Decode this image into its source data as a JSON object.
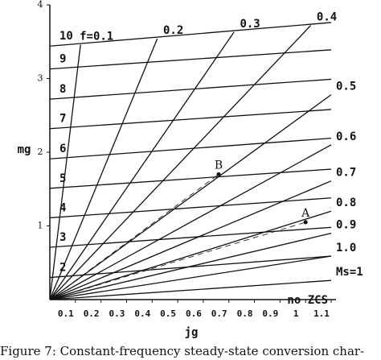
{
  "chart_data": {
    "type": "line",
    "caption": "Figure 7: Constant-frequency steady-state conversion char-",
    "xlabel": "jg",
    "ylabel": "mg",
    "annotation": "no ZCS",
    "xlim": [
      0,
      1.1
    ],
    "ylim": [
      0,
      4
    ],
    "xticks": [
      0.1,
      0.2,
      0.3,
      0.4,
      0.5,
      0.6,
      0.7,
      0.8,
      0.9,
      1,
      1.1
    ],
    "yticks": [
      1,
      2,
      3,
      4
    ],
    "color": "#111111",
    "series": [
      {
        "name": "2",
        "x": [
          0,
          1.1
        ],
        "y": [
          0.3,
          0.59
        ]
      },
      {
        "name": "3",
        "x": [
          0,
          1.1
        ],
        "y": [
          0.71,
          0.98
        ]
      },
      {
        "name": "4",
        "x": [
          0,
          1.1
        ],
        "y": [
          1.11,
          1.38
        ]
      },
      {
        "name": "5",
        "x": [
          0,
          1.1
        ],
        "y": [
          1.51,
          1.77
        ]
      },
      {
        "name": "6",
        "x": [
          0,
          1.1
        ],
        "y": [
          1.91,
          2.19
        ]
      },
      {
        "name": "7",
        "x": [
          0,
          1.1
        ],
        "y": [
          2.32,
          2.58
        ]
      },
      {
        "name": "8",
        "x": [
          0,
          1.1
        ],
        "y": [
          2.72,
          2.99
        ]
      },
      {
        "name": "9",
        "x": [
          0,
          1.1
        ],
        "y": [
          3.13,
          3.39
        ]
      },
      {
        "name": "10",
        "x": [
          0,
          1.1
        ],
        "y": [
          3.44,
          3.76
        ]
      },
      {
        "name": "f=0.1",
        "x": [
          0,
          0.12
        ],
        "y": [
          0,
          3.46
        ]
      },
      {
        "name": "0.2",
        "x": [
          0,
          0.42
        ],
        "y": [
          0,
          3.54
        ]
      },
      {
        "name": "0.3",
        "x": [
          0,
          0.72
        ],
        "y": [
          0,
          3.63
        ]
      },
      {
        "name": "0.4",
        "x": [
          0,
          1.02
        ],
        "y": [
          0,
          3.72
        ]
      },
      {
        "name": "0.5",
        "x": [
          0,
          1.1
        ],
        "y": [
          0,
          2.78
        ]
      },
      {
        "name": "0.6",
        "x": [
          0,
          1.1
        ],
        "y": [
          0,
          2.1
        ]
      },
      {
        "name": "0.7",
        "x": [
          0,
          1.1
        ],
        "y": [
          0,
          1.61
        ]
      },
      {
        "name": "0.8",
        "x": [
          0,
          1.1
        ],
        "y": [
          0,
          1.2
        ]
      },
      {
        "name": "0.9",
        "x": [
          0,
          1.1
        ],
        "y": [
          0,
          0.9
        ]
      },
      {
        "name": "1.0",
        "x": [
          0,
          1.1
        ],
        "y": [
          0,
          0.59
        ]
      },
      {
        "name": "Ms=1",
        "x": [
          0,
          1.1
        ],
        "y": [
          0,
          0.26
        ]
      }
    ],
    "points": [
      {
        "name": "A",
        "x": 1.0,
        "y": 1.05
      },
      {
        "name": "B",
        "x": 0.66,
        "y": 1.7
      }
    ]
  }
}
